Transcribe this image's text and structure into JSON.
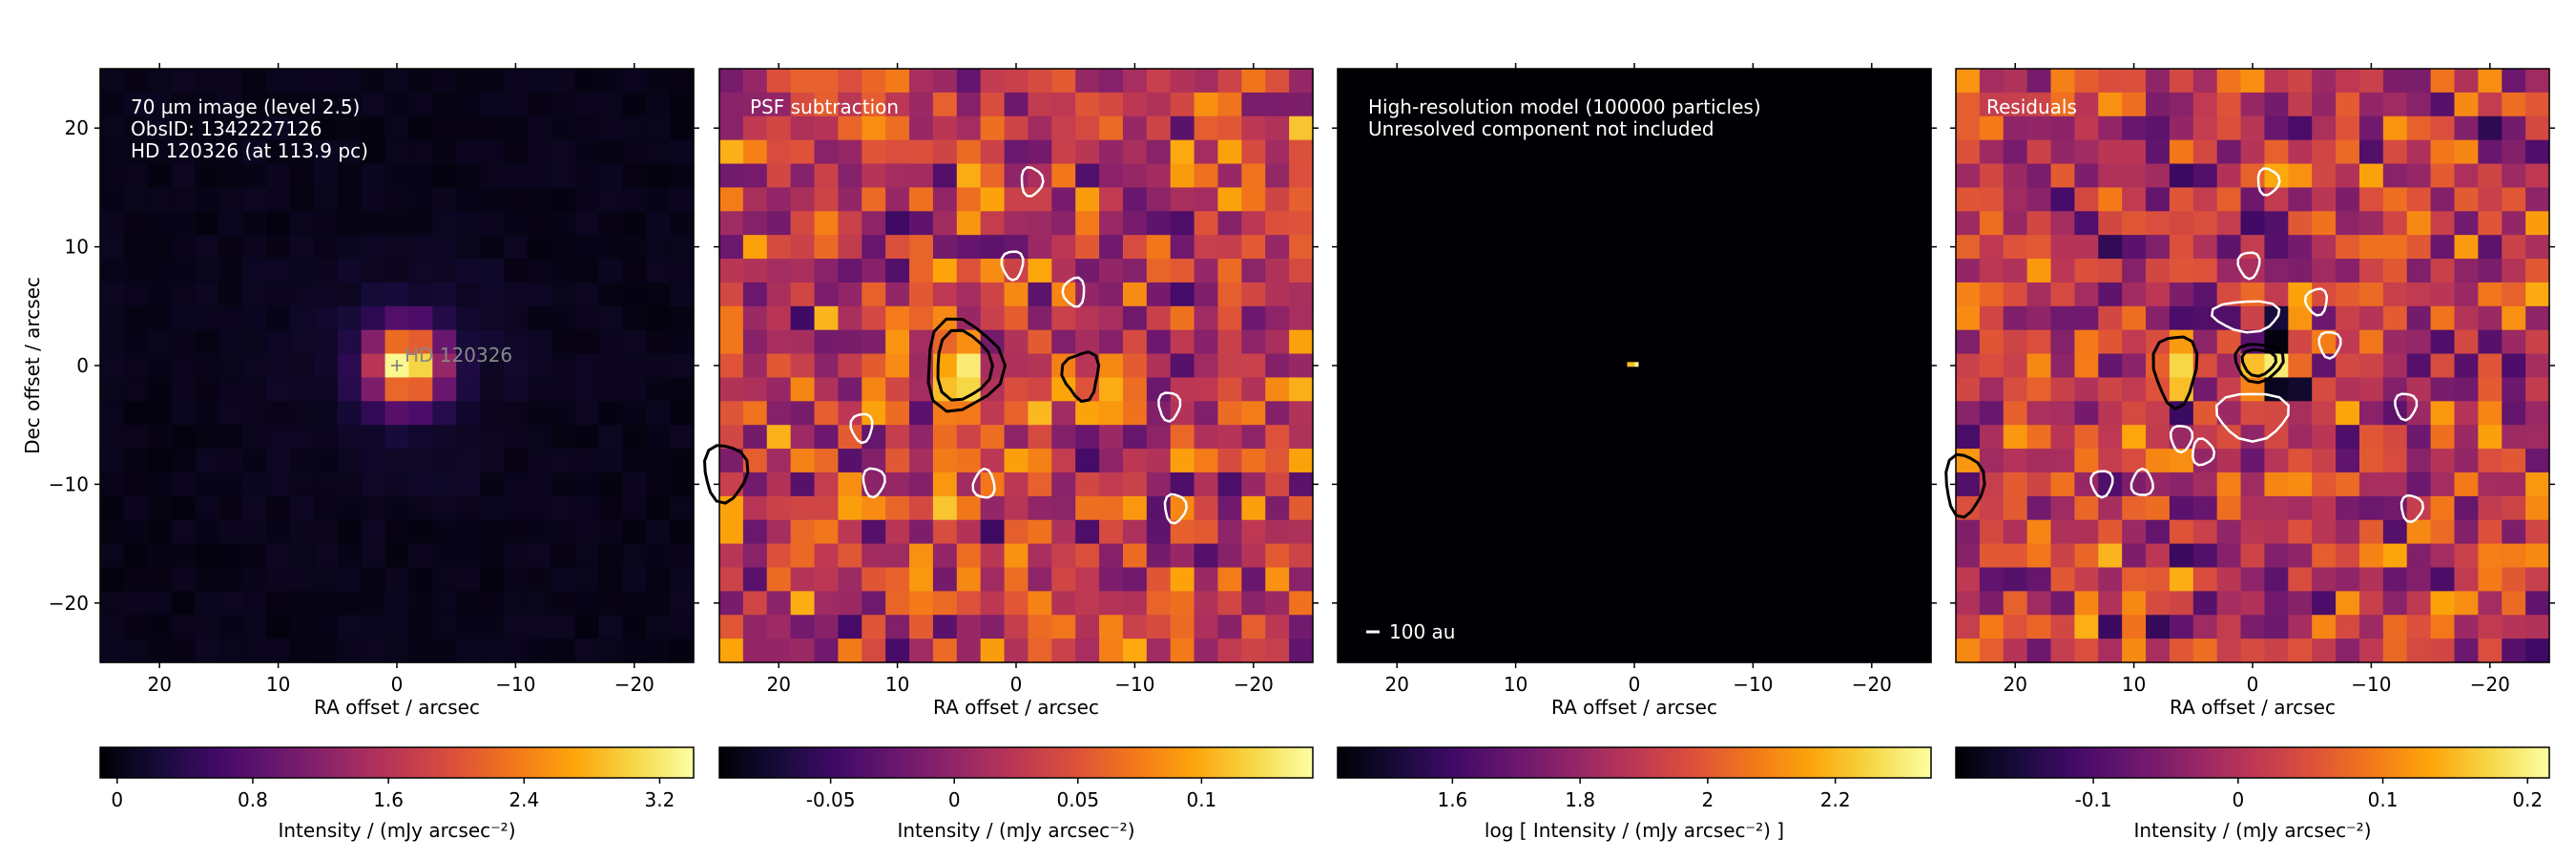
{
  "figure": {
    "panels": [
      {
        "id": "obs",
        "annotations": [
          "70 µm image (level 2.5)",
          "ObsID: 1342227126",
          "HD 120326 (at 113.9 pc)"
        ],
        "target_label": "HD 120326",
        "show_ylabel": true,
        "colormap": "inferno",
        "colorbar": {
          "ticks": [
            "0",
            "0.8",
            "1.6",
            "2.4",
            "3.2"
          ],
          "tick_values": [
            0,
            0.8,
            1.6,
            2.4,
            3.2
          ],
          "range": [
            -0.1,
            3.4
          ]
        }
      },
      {
        "id": "psfsub",
        "annotations": [
          "PSF subtraction"
        ],
        "colormap": "inferno",
        "colorbar": {
          "ticks": [
            "-0.05",
            "0",
            "0.05",
            "0.1"
          ],
          "tick_values": [
            -0.05,
            0,
            0.05,
            0.1
          ],
          "range": [
            -0.095,
            0.145
          ]
        }
      },
      {
        "id": "model",
        "annotations": [
          "High-resolution model (100000 particles)",
          "Unresolved component not included"
        ],
        "scalebar_label": "100 au",
        "colormap": "inferno",
        "colorbar": {
          "ticks": [
            "1.6",
            "1.8",
            "2",
            "2.2"
          ],
          "tick_values": [
            1.6,
            1.8,
            2.0,
            2.2
          ],
          "range": [
            1.42,
            2.35
          ]
        }
      },
      {
        "id": "resid",
        "annotations": [
          "Residuals"
        ],
        "colormap": "inferno",
        "colorbar": {
          "ticks": [
            "-0.1",
            "0",
            "0.1",
            "0.2"
          ],
          "tick_values": [
            -0.1,
            0,
            0.1,
            0.2
          ],
          "range": [
            -0.195,
            0.215
          ]
        }
      }
    ],
    "xlabel": "RA offset / arcsec",
    "ylabel": "Dec offset / arcsec",
    "colorbar_labels": [
      "Intensity / (mJy arcsec⁻²)",
      "Intensity / (mJy arcsec⁻²)",
      "log [ Intensity / (mJy arcsec⁻²) ]",
      "Intensity / (mJy arcsec⁻²)"
    ]
  },
  "chart_data": {
    "type": "heatmap",
    "panel_count": 4,
    "x_axis": {
      "label": "RA offset / arcsec",
      "range": [
        25,
        -25
      ],
      "ticks": [
        20,
        10,
        0,
        -10,
        -20
      ],
      "tick_labels": [
        "20",
        "10",
        "0",
        "−10",
        "−20"
      ]
    },
    "y_axis": {
      "label": "Dec offset / arcsec",
      "range": [
        -25,
        25
      ],
      "ticks": [
        -20,
        -10,
        0,
        10,
        20
      ],
      "tick_labels": [
        "−20",
        "−10",
        "0",
        "10",
        "20"
      ]
    },
    "source_position": [
      0,
      0
    ],
    "grid": false
  }
}
